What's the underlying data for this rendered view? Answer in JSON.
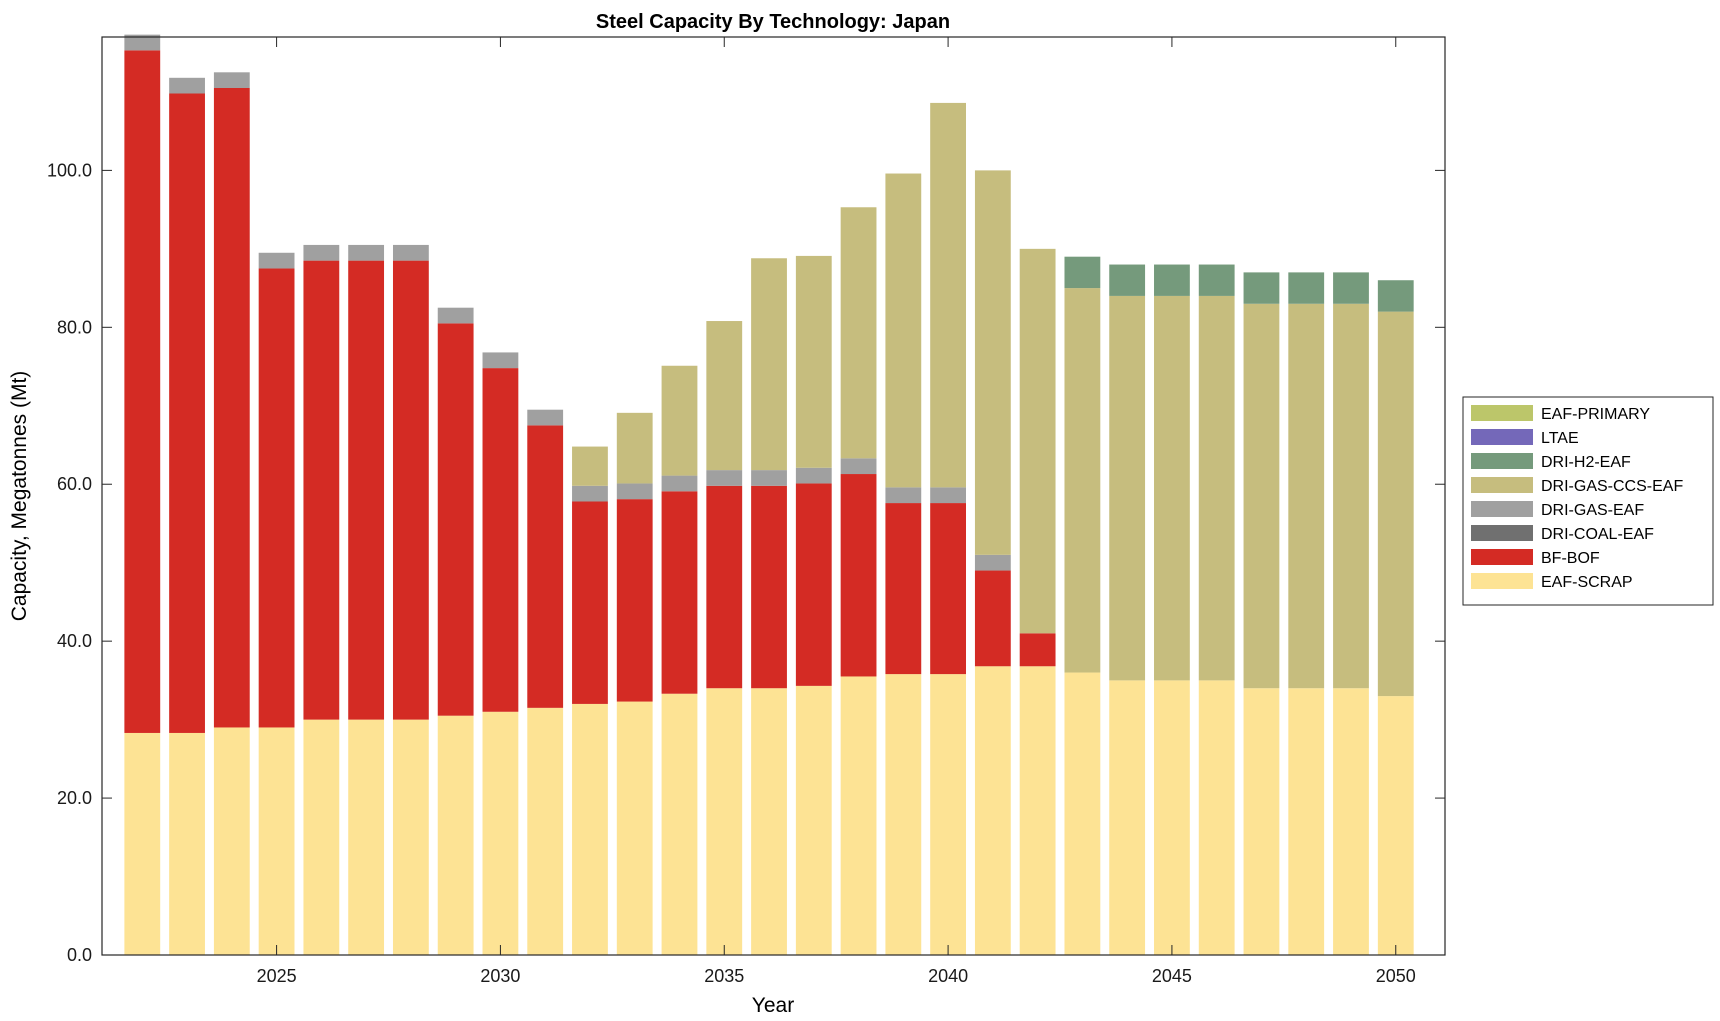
{
  "chart_data": {
    "type": "bar",
    "stacked": true,
    "title": "Steel Capacity By Technology: Japan",
    "xlabel": "Year",
    "ylabel": "Capacity, Megatonnes (Mt)",
    "ylim": [
      0,
      117
    ],
    "xlim": [
      2021.1,
      2051.1
    ],
    "x_tick_values": [
      2025,
      2030,
      2035,
      2040,
      2045,
      2050
    ],
    "x_tick_labels": [
      "2025",
      "2030",
      "2035",
      "2040",
      "2045",
      "2050"
    ],
    "y_tick_values": [
      0,
      20,
      40,
      60,
      80,
      100
    ],
    "y_tick_labels": [
      "0.0",
      "20.0",
      "40.0",
      "60.0",
      "80.0",
      "100.0"
    ],
    "grid": false,
    "legend_position": "right",
    "x": [
      2022,
      2023,
      2024,
      2025,
      2026,
      2027,
      2028,
      2029,
      2030,
      2031,
      2032,
      2033,
      2034,
      2035,
      2036,
      2037,
      2038,
      2039,
      2040,
      2041,
      2042,
      2043,
      2044,
      2045,
      2046,
      2047,
      2048,
      2049,
      2050
    ],
    "series": [
      {
        "name": "EAF-SCRAP",
        "color": "#fde394",
        "values": [
          28.3,
          28.3,
          29,
          29,
          30,
          30,
          30,
          30.5,
          31,
          31.5,
          32,
          32.3,
          33.3,
          34,
          34,
          34.3,
          35.5,
          35.8,
          35.8,
          36.8,
          36.8,
          36,
          35,
          35,
          35,
          34,
          34,
          34,
          33
        ]
      },
      {
        "name": "BF-BOF",
        "color": "#d42b24",
        "values": [
          87,
          81.5,
          81.5,
          58.5,
          58.5,
          58.5,
          58.5,
          50,
          43.8,
          36,
          25.8,
          25.8,
          25.8,
          25.8,
          25.8,
          25.8,
          25.8,
          21.8,
          21.8,
          12.2,
          4.2,
          0,
          0,
          0,
          0,
          0,
          0,
          0,
          0
        ]
      },
      {
        "name": "DRI-COAL-EAF",
        "color": "#707070",
        "values": [
          0,
          0,
          0,
          0,
          0,
          0,
          0,
          0,
          0,
          0,
          0,
          0,
          0,
          0,
          0,
          0,
          0,
          0,
          0,
          0,
          0,
          0,
          0,
          0,
          0,
          0,
          0,
          0,
          0
        ]
      },
      {
        "name": "DRI-GAS-EAF",
        "color": "#a0a0a0",
        "values": [
          2,
          2,
          2,
          2,
          2,
          2,
          2,
          2,
          2,
          2,
          2,
          2,
          2,
          2,
          2,
          2,
          2,
          2,
          2,
          2,
          0,
          0,
          0,
          0,
          0,
          0,
          0,
          0,
          0
        ]
      },
      {
        "name": "DRI-GAS-CCS-EAF",
        "color": "#c6bd7e",
        "values": [
          0,
          0,
          0,
          0,
          0,
          0,
          0,
          0,
          0,
          0,
          5,
          9,
          14,
          19,
          27,
          27,
          32,
          40,
          49,
          49,
          49,
          49,
          49,
          49,
          49,
          49,
          49,
          49,
          49
        ]
      },
      {
        "name": "DRI-H2-EAF",
        "color": "#759a7c",
        "values": [
          0,
          0,
          0,
          0,
          0,
          0,
          0,
          0,
          0,
          0,
          0,
          0,
          0,
          0,
          0,
          0,
          0,
          0,
          0,
          0,
          0,
          4,
          4,
          4,
          4,
          4,
          4,
          4,
          4
        ]
      },
      {
        "name": "LTAE",
        "color": "#7468b9",
        "values": [
          0,
          0,
          0,
          0,
          0,
          0,
          0,
          0,
          0,
          0,
          0,
          0,
          0,
          0,
          0,
          0,
          0,
          0,
          0,
          0,
          0,
          0,
          0,
          0,
          0,
          0,
          0,
          0,
          0
        ]
      },
      {
        "name": "EAF-PRIMARY",
        "color": "#bcc66a",
        "values": [
          0,
          0,
          0,
          0,
          0,
          0,
          0,
          0,
          0,
          0,
          0,
          0,
          0,
          0,
          0,
          0,
          0,
          0,
          0,
          0,
          0,
          0,
          0,
          0,
          0,
          0,
          0,
          0,
          0
        ]
      }
    ],
    "legend_order": [
      "EAF-PRIMARY",
      "LTAE",
      "DRI-H2-EAF",
      "DRI-GAS-CCS-EAF",
      "DRI-GAS-EAF",
      "DRI-COAL-EAF",
      "BF-BOF",
      "EAF-SCRAP"
    ]
  }
}
